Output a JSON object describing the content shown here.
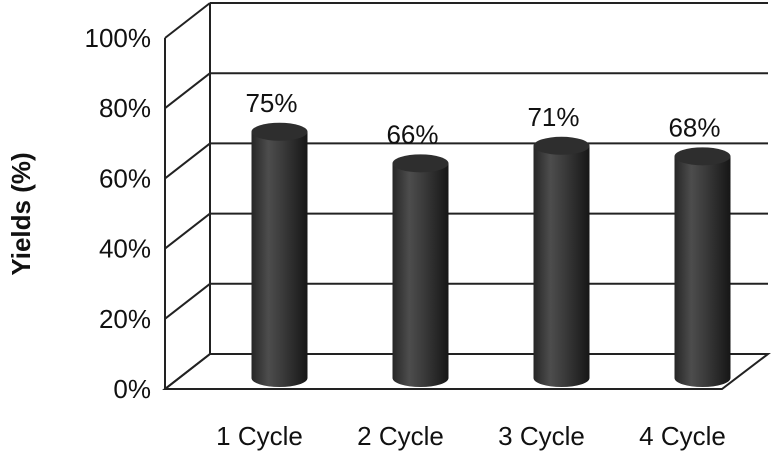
{
  "chart_data": {
    "type": "bar",
    "style": "3d-cylinder",
    "categories": [
      "1 Cycle",
      "2 Cycle",
      "3 Cycle",
      "4 Cycle"
    ],
    "values": [
      75,
      66,
      71,
      68
    ],
    "data_labels": [
      "75%",
      "66%",
      "71%",
      "68%"
    ],
    "title": "",
    "xlabel": "",
    "ylabel": "Yields (%)",
    "ylim": [
      0,
      100
    ],
    "yticks": [
      0,
      20,
      40,
      60,
      80,
      100
    ],
    "ytick_labels": [
      "0%",
      "20%",
      "40%",
      "60%",
      "80%",
      "100%"
    ],
    "grid": true,
    "legend": "none",
    "colors": {
      "bar": "#3a3a3a",
      "grid": "#222222"
    }
  }
}
